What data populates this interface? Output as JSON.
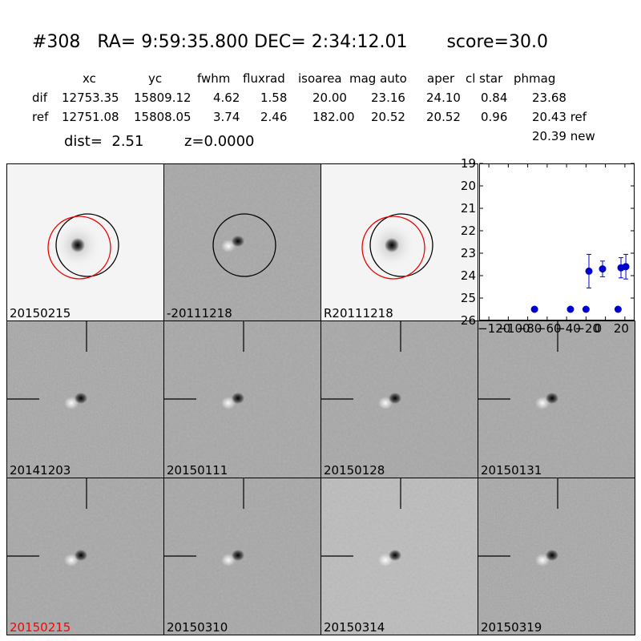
{
  "header": {
    "title": "#308   RA= 9:59:35.800 DEC= 2:34:12.01       score=30.0",
    "table": {
      "columns": [
        "xc",
        "yc",
        "fwhm",
        "fluxrad",
        "isoarea",
        "mag auto",
        "aper",
        "cl star",
        "phmag"
      ],
      "rows": [
        {
          "label": "dif",
          "values": [
            "12753.35",
            "15809.12",
            "4.62",
            "1.58",
            "20.00",
            "23.16",
            "24.10",
            "0.84",
            "23.68"
          ]
        },
        {
          "label": "ref",
          "values": [
            "12751.08",
            "15808.05",
            "3.74",
            "2.46",
            "182.00",
            "20.52",
            "20.52",
            "0.96",
            "20.43 ref"
          ]
        }
      ],
      "extra_phmag": "20.39 new"
    },
    "dist_text": "dist=  2.51",
    "z_text": "z=0.0000"
  },
  "panels": [
    {
      "label": "20150215",
      "style": "science",
      "label_color": "#000000"
    },
    {
      "label": "-20111218",
      "style": "diff",
      "label_color": "#000000"
    },
    {
      "label": "R20111218",
      "style": "science",
      "label_color": "#000000"
    },
    {
      "label": "20141203",
      "style": "diff-noisy",
      "label_color": "#000000"
    },
    {
      "label": "20150111",
      "style": "diff",
      "label_color": "#000000"
    },
    {
      "label": "20150128",
      "style": "diff",
      "label_color": "#000000"
    },
    {
      "label": "20150131",
      "style": "diff",
      "label_color": "#000000"
    },
    {
      "label": "20150215",
      "style": "diff",
      "label_color": "#ff0000"
    },
    {
      "label": "20150310",
      "style": "diff",
      "label_color": "#000000"
    },
    {
      "label": "20150314",
      "style": "diff-light",
      "label_color": "#000000"
    },
    {
      "label": "20150319",
      "style": "diff-noisy",
      "label_color": "#000000"
    }
  ],
  "chart_data": {
    "type": "scatter",
    "xlim": [
      -130,
      30
    ],
    "ylim": [
      26,
      19
    ],
    "y_inverted": true,
    "xticks": [
      -120,
      -100,
      -80,
      -60,
      -40,
      -20,
      0,
      20
    ],
    "xtick_labels": [
      "−120",
      "−100",
      "−80",
      "−60",
      "−40",
      "−20",
      "0",
      "20"
    ],
    "yticks": [
      19,
      20,
      21,
      22,
      23,
      24,
      25,
      26
    ],
    "marker_color": "#0000cc",
    "points": [
      {
        "x": -73,
        "y": 25.5,
        "err": 0.1
      },
      {
        "x": -36,
        "y": 25.5,
        "err": 0.1
      },
      {
        "x": -20,
        "y": 25.5,
        "err": 0.1
      },
      {
        "x": -17,
        "y": 23.8,
        "err": 0.75
      },
      {
        "x": -3,
        "y": 23.7,
        "err": 0.35
      },
      {
        "x": 13,
        "y": 25.5,
        "err": 0.1
      },
      {
        "x": 16,
        "y": 23.65,
        "err": 0.45
      },
      {
        "x": 21,
        "y": 23.6,
        "err": 0.55
      }
    ]
  }
}
